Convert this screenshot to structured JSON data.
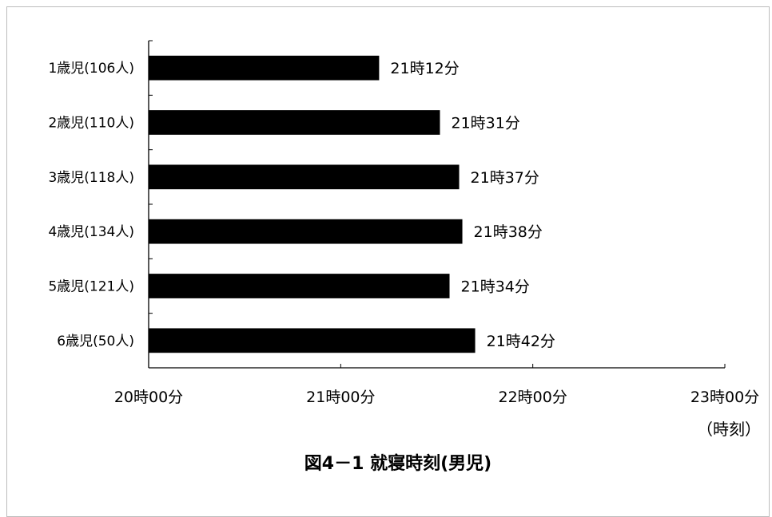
{
  "chart_data": {
    "type": "bar",
    "orientation": "horizontal",
    "title": "図4－1 就寝時刻(男児)",
    "xlabel": "（時刻）",
    "categories": [
      "1歳児(106人)",
      "2歳児(110人)",
      "3歳児(118人)",
      "4歳児(134人)",
      "5歳児(121人)",
      "6歳児(50人)"
    ],
    "values": [
      "21:12",
      "21:31",
      "21:37",
      "21:38",
      "21:34",
      "21:42"
    ],
    "data_labels": [
      "21時12分",
      "21時31分",
      "21時37分",
      "21時38分",
      "21時34分",
      "21時42分"
    ],
    "xlim": [
      "20:00",
      "23:00"
    ],
    "x_ticks": [
      "20:00",
      "21:00",
      "22:00",
      "23:00"
    ],
    "x_tick_labels": [
      "20時00分",
      "21時00分",
      "22時00分",
      "23時00分"
    ],
    "grid": false,
    "bar_color": "#000000"
  }
}
